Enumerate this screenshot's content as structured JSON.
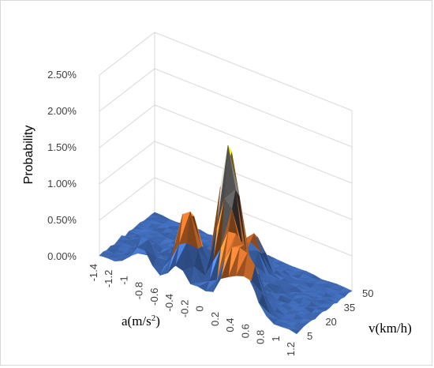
{
  "chart_data": {
    "type": "3d-surface",
    "title": "",
    "zlabel": "Probability",
    "xlabel": "a(m/s²)",
    "xlabel_base": "a(m/s",
    "xlabel_sup": "2",
    "xlabel_close": ")",
    "ylabel": "v(km/h)",
    "z_ticks": [
      "0.00%",
      "0.50%",
      "1.00%",
      "1.50%",
      "2.00%",
      "2.50%"
    ],
    "z_range": [
      0,
      2.5
    ],
    "x_ticks": [
      "-1.4",
      "-1.2",
      "-1",
      "-0.8",
      "-0.6",
      "-0.4",
      "-0.2",
      "0",
      "0.2",
      "0.4",
      "0.6",
      "0.8",
      "1",
      "1.2"
    ],
    "y_ticks": [
      "5",
      "20",
      "35",
      "50"
    ],
    "grid": true,
    "band_colors": [
      "#4472C4",
      "#ED7D31",
      "#A5A5A5",
      "#FFC000"
    ],
    "peaks": [
      {
        "a": 0.1,
        "v": 18,
        "z": 1.95
      },
      {
        "a": -0.35,
        "v": 12,
        "z": 0.95
      },
      {
        "a": 0.3,
        "v": 10,
        "z": 0.78
      },
      {
        "a": 0.55,
        "v": 8,
        "z": 0.62
      },
      {
        "a": -0.85,
        "v": 8,
        "z": 0.42
      },
      {
        "a": 0.2,
        "v": 32,
        "z": 0.55
      },
      {
        "a": -0.1,
        "v": 30,
        "z": 0.38
      }
    ]
  }
}
